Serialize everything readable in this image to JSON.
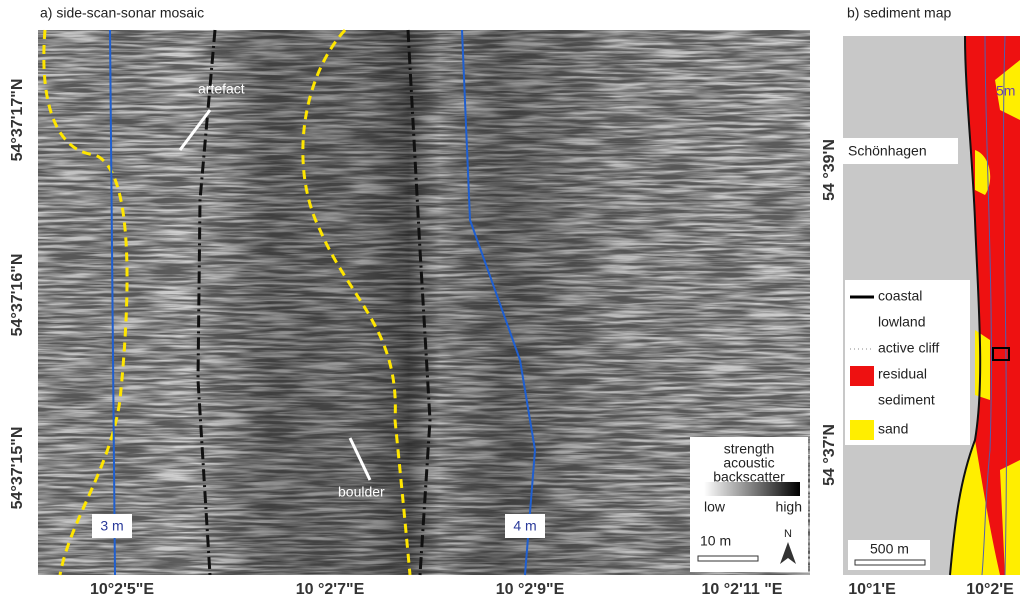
{
  "panel_a": {
    "title": "a) side-scan-sonar mosaic",
    "y_labels": [
      "54°37'17\"N",
      "54°37'16\"N",
      "54°37'15\"N"
    ],
    "x_labels": [
      "10°2'5\"E",
      "10 °2'7\"E",
      "10 °2'9\"E",
      "10 °2'11 \"E"
    ],
    "annotations": {
      "artefact": "artefact",
      "boulder": "boulder"
    },
    "depth_labels": [
      "3 m",
      "4 m"
    ],
    "legend": {
      "title": [
        "strength",
        "acoustic",
        "backscatter"
      ],
      "low": "low",
      "high": "high"
    },
    "scale": "10 m",
    "north": "N"
  },
  "panel_b": {
    "title": "b) sediment map",
    "place": "Schönhagen",
    "depth_label": "5m",
    "y_labels": [
      "54 °39'N",
      "54 °37'N"
    ],
    "x_labels": [
      "10°1'E",
      "10°2'E"
    ],
    "legend": [
      [
        "coastal",
        "lowland"
      ],
      [
        "active cliff"
      ],
      [
        "residual",
        "sediment"
      ],
      [
        "sand"
      ]
    ],
    "scale": "500 m"
  }
}
